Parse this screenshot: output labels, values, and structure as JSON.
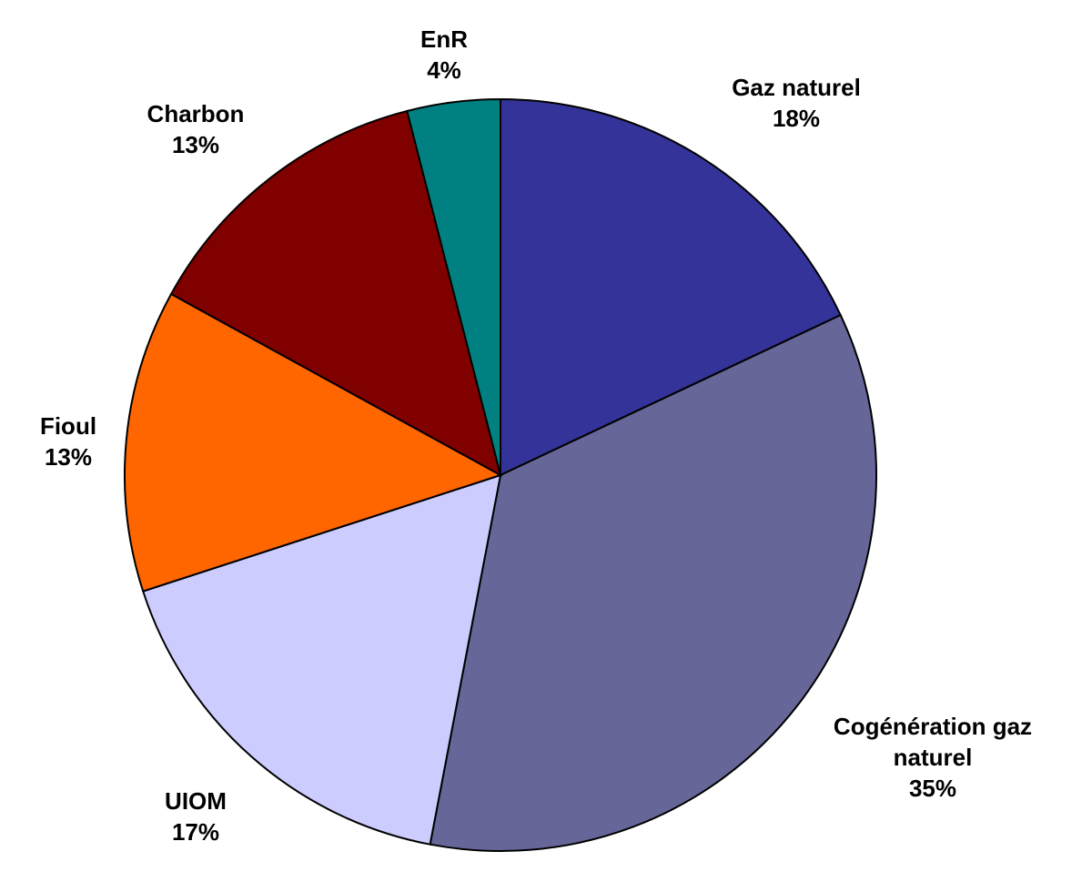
{
  "chart_data": {
    "type": "pie",
    "categories": [
      "Gaz naturel",
      "Cogénération gaz naturel",
      "UIOM",
      "Fioul",
      "Charbon",
      "EnR"
    ],
    "values": [
      18,
      35,
      17,
      13,
      13,
      4
    ],
    "value_labels": [
      "18%",
      "35%",
      "17%",
      "13%",
      "13%",
      "4%"
    ],
    "colors": [
      "#333399",
      "#666699",
      "#ccccff",
      "#ff6600",
      "#800000",
      "#008080"
    ]
  }
}
